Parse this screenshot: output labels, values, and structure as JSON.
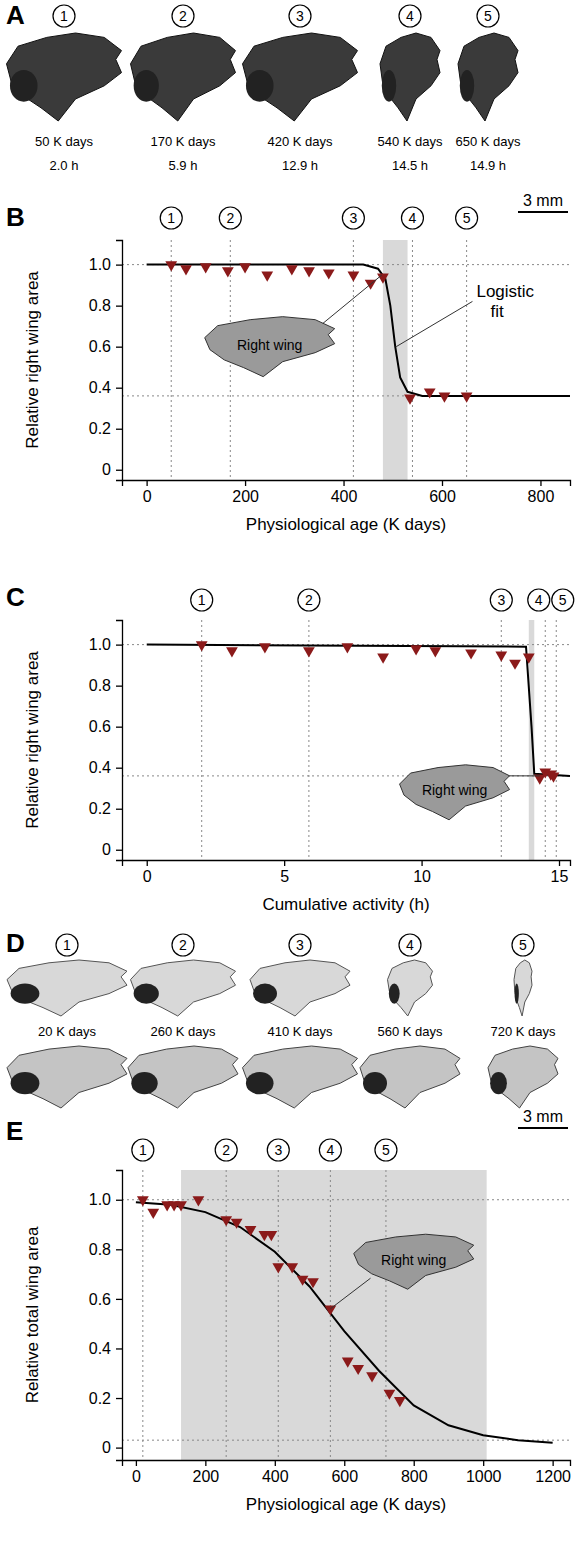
{
  "chart_data": [
    {
      "panel_label": "B",
      "type": "scatter",
      "x_label": "Physiological age (K days)",
      "y_label": "Relative right wing area",
      "xlim": [
        -50,
        860
      ],
      "ylim": [
        -0.05,
        1.12
      ],
      "xticks": [
        0,
        200,
        400,
        600,
        800
      ],
      "yticks": [
        0,
        0.2,
        0.4,
        0.6,
        0.8,
        {
          "value": 1,
          "label": "1.0"
        }
      ],
      "grid": false,
      "series": [
        {
          "type": "line",
          "line_style": "solid",
          "color": "#000000",
          "x": [
            0,
            440,
            470,
            485,
            495,
            505,
            515,
            530,
            560,
            860
          ],
          "values": [
            1,
            1,
            0.98,
            0.93,
            0.8,
            0.6,
            0.45,
            0.38,
            0.36,
            0.36
          ]
        },
        {
          "type": "scatter",
          "marker": "triangle-down",
          "color": "#8b1a1a",
          "x": [
            50,
            80,
            120,
            165,
            200,
            245,
            295,
            330,
            370,
            420,
            455,
            480,
            535,
            575,
            605,
            650
          ],
          "values": [
            1,
            0.98,
            0.99,
            0.97,
            0.99,
            0.95,
            0.98,
            0.97,
            0.96,
            0.95,
            0.91,
            0.94,
            0.35,
            0.38,
            0.36,
            0.36
          ]
        }
      ],
      "bands": [
        [
          480,
          530
        ]
      ],
      "hlines": [
        1,
        0.36
      ],
      "markers": {
        "x": [
          50,
          170,
          420,
          540,
          650
        ],
        "labels": [
          "1",
          "2",
          "3",
          "4",
          "5"
        ]
      },
      "scale_bar": "3 mm",
      "fit_label": "Logistic fit",
      "inset_label": "Right wing"
    },
    {
      "panel_label": "C",
      "type": "scatter",
      "x_label": "Cumulative activity (h)",
      "y_label": "Relative right wing area",
      "xlim": [
        -0.9,
        15.4
      ],
      "ylim": [
        -0.05,
        1.12
      ],
      "xticks": [
        0,
        5,
        10,
        15
      ],
      "yticks": [
        0,
        0.2,
        0.4,
        0.6,
        0.8,
        {
          "value": 1,
          "label": "1.0"
        }
      ],
      "grid": false,
      "series": [
        {
          "type": "line",
          "line_style": "solid",
          "color": "#000000",
          "x": [
            0,
            13.8,
            14.0,
            14.1,
            15.4
          ],
          "values": [
            1,
            0.99,
            0.6,
            0.37,
            0.36
          ]
        },
        {
          "type": "scatter",
          "marker": "triangle-down",
          "color": "#8b1a1a",
          "x": [
            2.0,
            3.1,
            4.3,
            5.9,
            7.3,
            8.6,
            9.8,
            10.5,
            11.8,
            12.9,
            13.4,
            13.9,
            14.3,
            14.5,
            14.7,
            14.8
          ],
          "values": [
            1,
            0.97,
            0.99,
            0.97,
            0.99,
            0.94,
            0.98,
            0.97,
            0.96,
            0.95,
            0.91,
            0.94,
            0.35,
            0.38,
            0.37,
            0.36
          ]
        }
      ],
      "bands": [
        [
          13.9,
          14.1
        ]
      ],
      "hlines": [
        1,
        0.36
      ],
      "markers": {
        "x": [
          2.0,
          5.9,
          12.9,
          14.5,
          14.9
        ],
        "labels": [
          "1",
          "2",
          "3",
          "4",
          "5"
        ]
      },
      "inset_label": "Right wing"
    },
    {
      "panel_label": "E",
      "type": "scatter",
      "x_label": "Physiological age (K days)",
      "y_label": "Relative total wing area",
      "xlim": [
        -40,
        1250
      ],
      "ylim": [
        -0.05,
        1.12
      ],
      "xticks": [
        0,
        200,
        400,
        600,
        800,
        1000,
        1200
      ],
      "yticks": [
        0,
        0.2,
        0.4,
        0.6,
        0.8,
        {
          "value": 1,
          "label": "1.0"
        }
      ],
      "grid": false,
      "series": [
        {
          "type": "line",
          "line_style": "solid",
          "color": "#000000",
          "x": [
            0,
            100,
            200,
            300,
            400,
            500,
            600,
            700,
            800,
            900,
            1000,
            1100,
            1200
          ],
          "values": [
            0.99,
            0.98,
            0.95,
            0.89,
            0.79,
            0.65,
            0.47,
            0.31,
            0.17,
            0.09,
            0.05,
            0.03,
            0.02
          ]
        },
        {
          "type": "scatter",
          "marker": "triangle-down",
          "color": "#8b1a1a",
          "x": [
            20,
            50,
            90,
            110,
            130,
            180,
            260,
            290,
            330,
            370,
            390,
            410,
            450,
            480,
            510,
            560,
            610,
            640,
            680,
            730,
            760
          ],
          "values": [
            1,
            0.95,
            0.98,
            0.98,
            0.98,
            1,
            0.92,
            0.91,
            0.88,
            0.86,
            0.86,
            0.73,
            0.73,
            0.68,
            0.67,
            0.56,
            0.35,
            0.32,
            0.29,
            0.22,
            0.19
          ]
        }
      ],
      "bands": [
        [
          130,
          1010
        ]
      ],
      "hlines": [
        1,
        0.03
      ],
      "markers": {
        "x": [
          20,
          260,
          410,
          560,
          720
        ],
        "labels": [
          "1",
          "2",
          "3",
          "4",
          "5"
        ]
      },
      "scale_bar": "3 mm",
      "inset_label": "Right wing"
    }
  ],
  "image_strips": [
    {
      "panel_label": "A",
      "items": [
        {
          "number": "1",
          "age": "50 K days",
          "hours": "2.0 h"
        },
        {
          "number": "2",
          "age": "170 K days",
          "hours": "5.9 h"
        },
        {
          "number": "3",
          "age": "420 K days",
          "hours": "12.9 h"
        },
        {
          "number": "4",
          "age": "540 K days",
          "hours": "14.5 h"
        },
        {
          "number": "5",
          "age": "650 K days",
          "hours": "14.9 h"
        }
      ]
    },
    {
      "panel_label": "D",
      "items": [
        {
          "number": "1",
          "age": "20 K days"
        },
        {
          "number": "2",
          "age": "260 K days"
        },
        {
          "number": "3",
          "age": "410 K days"
        },
        {
          "number": "4",
          "age": "560 K days"
        },
        {
          "number": "5",
          "age": "720 K days"
        }
      ]
    }
  ]
}
